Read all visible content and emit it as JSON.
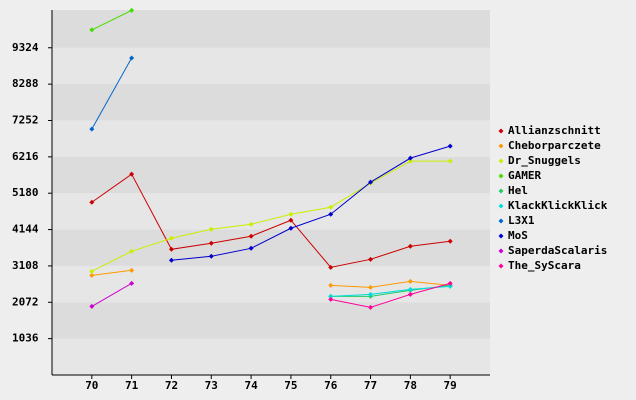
{
  "chart_data": {
    "type": "line",
    "x": [
      70,
      71,
      72,
      73,
      74,
      75,
      76,
      77,
      78,
      79
    ],
    "xlim": [
      69,
      80
    ],
    "xticks": [
      70,
      71,
      72,
      73,
      74,
      75,
      76,
      77,
      78,
      79
    ],
    "ylim": [
      0,
      10400
    ],
    "yticks": [
      1036,
      2072,
      3108,
      4144,
      5180,
      6216,
      7252,
      8288,
      9324
    ],
    "grid": true,
    "legend": "right",
    "series": [
      {
        "name": "Allianzschnitt",
        "color": "#cc0000",
        "values": [
          4923,
          5722,
          3582,
          3753,
          3953,
          4410,
          3068,
          3296,
          3667,
          3810
        ]
      },
      {
        "name": "Cheborparczete",
        "color": "#ff9900",
        "values": [
          2840,
          2982,
          null,
          null,
          null,
          null,
          2554,
          2497,
          2668,
          2554
        ]
      },
      {
        "name": "Dr_Snuggels",
        "color": "#ccee00",
        "values": [
          2954,
          3525,
          3896,
          4153,
          4295,
          4581,
          4780,
          5465,
          6093,
          6093
        ]
      },
      {
        "name": "GAMER",
        "color": "#44dd00",
        "values": [
          9832,
          10390,
          null,
          null,
          null,
          null,
          null,
          null,
          null,
          null
        ]
      },
      {
        "name": "Hel",
        "color": "#22cc66",
        "values": [
          null,
          null,
          null,
          null,
          null,
          null,
          2240,
          2240,
          2412,
          2554
        ]
      },
      {
        "name": "KlackKlickKlick",
        "color": "#00dddd",
        "values": [
          null,
          null,
          null,
          null,
          null,
          null,
          2240,
          2297,
          2440,
          2526
        ]
      },
      {
        "name": "L3X1",
        "color": "#0066cc",
        "values": [
          7007,
          9033,
          null,
          null,
          null,
          null,
          null,
          null,
          null,
          null
        ]
      },
      {
        "name": "MoS",
        "color": "#0000cc",
        "values": [
          null,
          null,
          3268,
          3382,
          3610,
          4181,
          4581,
          5494,
          6179,
          6522
        ]
      },
      {
        "name": "SaperdaScalaris",
        "color": "#cc00cc",
        "values": [
          1955,
          2611,
          null,
          null,
          null,
          null,
          null,
          null,
          null,
          null
        ]
      },
      {
        "name": "The_SyScara",
        "color": "#ff0099",
        "values": [
          null,
          null,
          null,
          null,
          null,
          null,
          2155,
          1926,
          2297,
          2611
        ]
      }
    ]
  }
}
